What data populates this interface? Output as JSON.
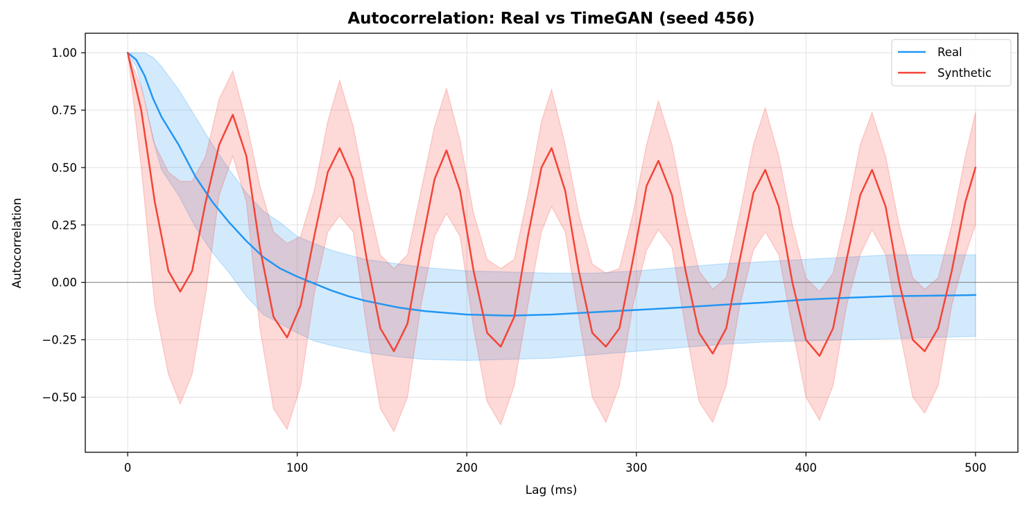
{
  "chart_data": {
    "type": "line",
    "title": "Autocorrelation: Real vs TimeGAN (seed 456)",
    "xlabel": "Lag (ms)",
    "ylabel": "Autocorrelation",
    "xlim": [
      -25,
      525
    ],
    "ylim": [
      -0.74,
      1.085
    ],
    "xticks": [
      0,
      100,
      200,
      300,
      400,
      500
    ],
    "xtick_labels": [
      "0",
      "100",
      "200",
      "300",
      "400",
      "500"
    ],
    "yticks": [
      1.0,
      0.75,
      0.5,
      0.25,
      0.0,
      -0.25,
      -0.5
    ],
    "ytick_labels": [
      "1.00",
      "0.75",
      "0.50",
      "0.25",
      "0.00",
      "−0.25",
      "−0.50"
    ],
    "grid": true,
    "zero_line": true,
    "legend_position": "top-right",
    "series": [
      {
        "name": "Real",
        "color": "#2196f3",
        "band_color": "#2196f3",
        "x": [
          0,
          5,
          10,
          15,
          20,
          30,
          40,
          50,
          60,
          70,
          80,
          90,
          100,
          110,
          120,
          130,
          140,
          150,
          160,
          175,
          200,
          225,
          250,
          275,
          300,
          325,
          350,
          375,
          400,
          425,
          450,
          475,
          500
        ],
        "y": [
          1.0,
          0.97,
          0.9,
          0.8,
          0.72,
          0.6,
          0.46,
          0.35,
          0.26,
          0.18,
          0.11,
          0.06,
          0.025,
          -0.005,
          -0.035,
          -0.06,
          -0.08,
          -0.095,
          -0.11,
          -0.125,
          -0.14,
          -0.145,
          -0.14,
          -0.13,
          -0.12,
          -0.11,
          -0.098,
          -0.088,
          -0.075,
          -0.067,
          -0.06,
          -0.058,
          -0.055
        ],
        "upper": [
          1.0,
          1.0,
          1.0,
          0.98,
          0.94,
          0.84,
          0.72,
          0.6,
          0.49,
          0.39,
          0.31,
          0.26,
          0.2,
          0.17,
          0.14,
          0.12,
          0.1,
          0.09,
          0.08,
          0.065,
          0.05,
          0.045,
          0.04,
          0.04,
          0.05,
          0.065,
          0.08,
          0.09,
          0.1,
          0.11,
          0.12,
          0.12,
          0.12
        ],
        "lower": [
          1.0,
          0.94,
          0.8,
          0.62,
          0.49,
          0.38,
          0.24,
          0.13,
          0.04,
          -0.06,
          -0.14,
          -0.18,
          -0.22,
          -0.255,
          -0.275,
          -0.29,
          -0.305,
          -0.315,
          -0.325,
          -0.335,
          -0.34,
          -0.335,
          -0.33,
          -0.315,
          -0.3,
          -0.285,
          -0.27,
          -0.26,
          -0.255,
          -0.25,
          -0.245,
          -0.24,
          -0.235
        ]
      },
      {
        "name": "Synthetic",
        "color": "#f44336",
        "band_color": "#f44336",
        "x": [
          0,
          8,
          16,
          24,
          31,
          38,
          46,
          54,
          62,
          70,
          78,
          86,
          94,
          102,
          110,
          118,
          125,
          133,
          141,
          149,
          157,
          165,
          173,
          181,
          188,
          196,
          204,
          212,
          220,
          228,
          236,
          244,
          250,
          258,
          266,
          274,
          282,
          290,
          298,
          306,
          313,
          321,
          329,
          337,
          345,
          353,
          361,
          369,
          376,
          384,
          392,
          400,
          408,
          416,
          424,
          432,
          439,
          447,
          455,
          463,
          470,
          478,
          486,
          494,
          500
        ],
        "y": [
          1.0,
          0.75,
          0.35,
          0.05,
          -0.04,
          0.05,
          0.35,
          0.6,
          0.73,
          0.55,
          0.15,
          -0.15,
          -0.24,
          -0.1,
          0.2,
          0.48,
          0.585,
          0.45,
          0.1,
          -0.2,
          -0.3,
          -0.18,
          0.15,
          0.45,
          0.575,
          0.4,
          0.05,
          -0.22,
          -0.28,
          -0.15,
          0.2,
          0.5,
          0.585,
          0.4,
          0.05,
          -0.22,
          -0.28,
          -0.2,
          0.1,
          0.42,
          0.53,
          0.38,
          0.05,
          -0.22,
          -0.31,
          -0.2,
          0.1,
          0.39,
          0.49,
          0.33,
          0.0,
          -0.25,
          -0.32,
          -0.2,
          0.1,
          0.38,
          0.49,
          0.33,
          0.0,
          -0.25,
          -0.3,
          -0.2,
          0.05,
          0.35,
          0.5
        ],
        "upper": [
          1.0,
          0.85,
          0.6,
          0.48,
          0.44,
          0.44,
          0.55,
          0.8,
          0.92,
          0.7,
          0.42,
          0.22,
          0.17,
          0.2,
          0.4,
          0.7,
          0.88,
          0.68,
          0.38,
          0.12,
          0.06,
          0.12,
          0.4,
          0.68,
          0.845,
          0.62,
          0.3,
          0.1,
          0.06,
          0.1,
          0.38,
          0.7,
          0.84,
          0.6,
          0.3,
          0.08,
          0.04,
          0.06,
          0.3,
          0.6,
          0.79,
          0.6,
          0.3,
          0.05,
          -0.03,
          0.02,
          0.3,
          0.6,
          0.76,
          0.55,
          0.25,
          0.02,
          -0.04,
          0.04,
          0.3,
          0.6,
          0.74,
          0.55,
          0.25,
          0.02,
          -0.03,
          0.02,
          0.25,
          0.55,
          0.74
        ],
        "lower": [
          1.0,
          0.5,
          -0.1,
          -0.4,
          -0.53,
          -0.4,
          -0.05,
          0.38,
          0.55,
          0.35,
          -0.2,
          -0.55,
          -0.64,
          -0.45,
          -0.05,
          0.22,
          0.29,
          0.22,
          -0.2,
          -0.55,
          -0.65,
          -0.5,
          -0.1,
          0.2,
          0.3,
          0.2,
          -0.2,
          -0.52,
          -0.62,
          -0.45,
          -0.1,
          0.22,
          0.33,
          0.22,
          -0.15,
          -0.5,
          -0.61,
          -0.45,
          -0.1,
          0.14,
          0.23,
          0.15,
          -0.2,
          -0.52,
          -0.61,
          -0.45,
          -0.1,
          0.14,
          0.22,
          0.12,
          -0.2,
          -0.5,
          -0.6,
          -0.45,
          -0.1,
          0.12,
          0.23,
          0.12,
          -0.2,
          -0.5,
          -0.57,
          -0.45,
          -0.1,
          0.12,
          0.25
        ]
      }
    ]
  },
  "legend": {
    "items": [
      {
        "label": "Real",
        "color": "#2196f3"
      },
      {
        "label": "Synthetic",
        "color": "#f44336"
      }
    ]
  }
}
